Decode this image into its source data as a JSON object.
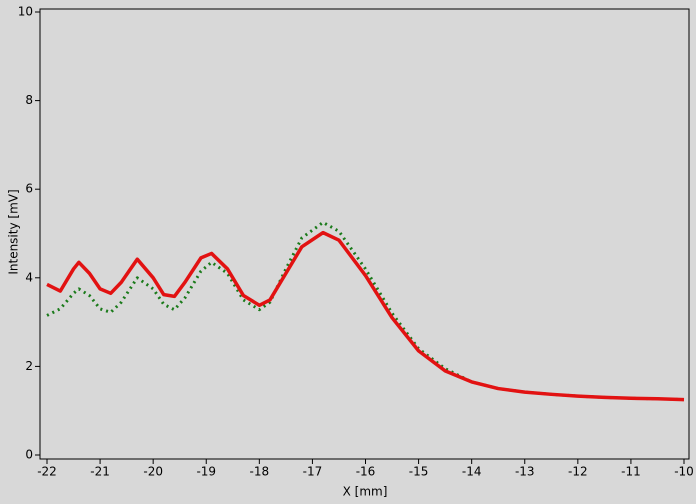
{
  "chart_data": {
    "type": "line",
    "x_label": "X [mm]",
    "y_label": "Intensity [mV]",
    "x": [
      -22,
      -21.75,
      -21.5,
      -21.4,
      -21.2,
      -21,
      -20.8,
      -20.6,
      -20.3,
      -20,
      -19.8,
      -19.6,
      -19.4,
      -19.1,
      -18.9,
      -18.6,
      -18.3,
      -18,
      -17.8,
      -17.5,
      -17.2,
      -16.8,
      -16.5,
      -16,
      -15.5,
      -15,
      -14.5,
      -14,
      -13.5,
      -13,
      -12.5,
      -12,
      -11.5,
      -11,
      -10.5,
      -10
    ],
    "series": [
      {
        "color": "#e21212",
        "style": "solid",
        "values": [
          3.85,
          3.7,
          4.2,
          4.35,
          4.1,
          3.75,
          3.65,
          3.9,
          4.42,
          4.0,
          3.62,
          3.58,
          3.9,
          4.45,
          4.55,
          4.2,
          3.6,
          3.38,
          3.5,
          4.1,
          4.7,
          5.02,
          4.85,
          4.05,
          3.1,
          2.35,
          1.9,
          1.65,
          1.5,
          1.42,
          1.37,
          1.33,
          1.3,
          1.28,
          1.27,
          1.25
        ]
      },
      {
        "color": "#1a7a1a",
        "style": "dotted",
        "values": [
          3.15,
          3.3,
          3.65,
          3.75,
          3.6,
          3.3,
          3.22,
          3.45,
          4.0,
          3.75,
          3.4,
          3.28,
          3.55,
          4.15,
          4.35,
          4.1,
          3.5,
          3.28,
          3.45,
          4.2,
          4.9,
          5.25,
          5.05,
          4.2,
          3.2,
          2.4,
          1.95,
          1.65,
          1.5,
          1.42,
          1.37,
          1.33,
          1.3,
          1.28,
          1.27,
          1.25
        ]
      }
    ],
    "xlim": [
      -22,
      -10
    ],
    "xticks": [
      -22,
      -21,
      -20,
      -19,
      -18,
      -17,
      -16,
      -15,
      -14,
      -13,
      -12,
      -11,
      -10
    ],
    "ylim": [
      0,
      10
    ],
    "yticks": [
      0,
      2,
      4,
      6,
      8,
      10
    ]
  }
}
